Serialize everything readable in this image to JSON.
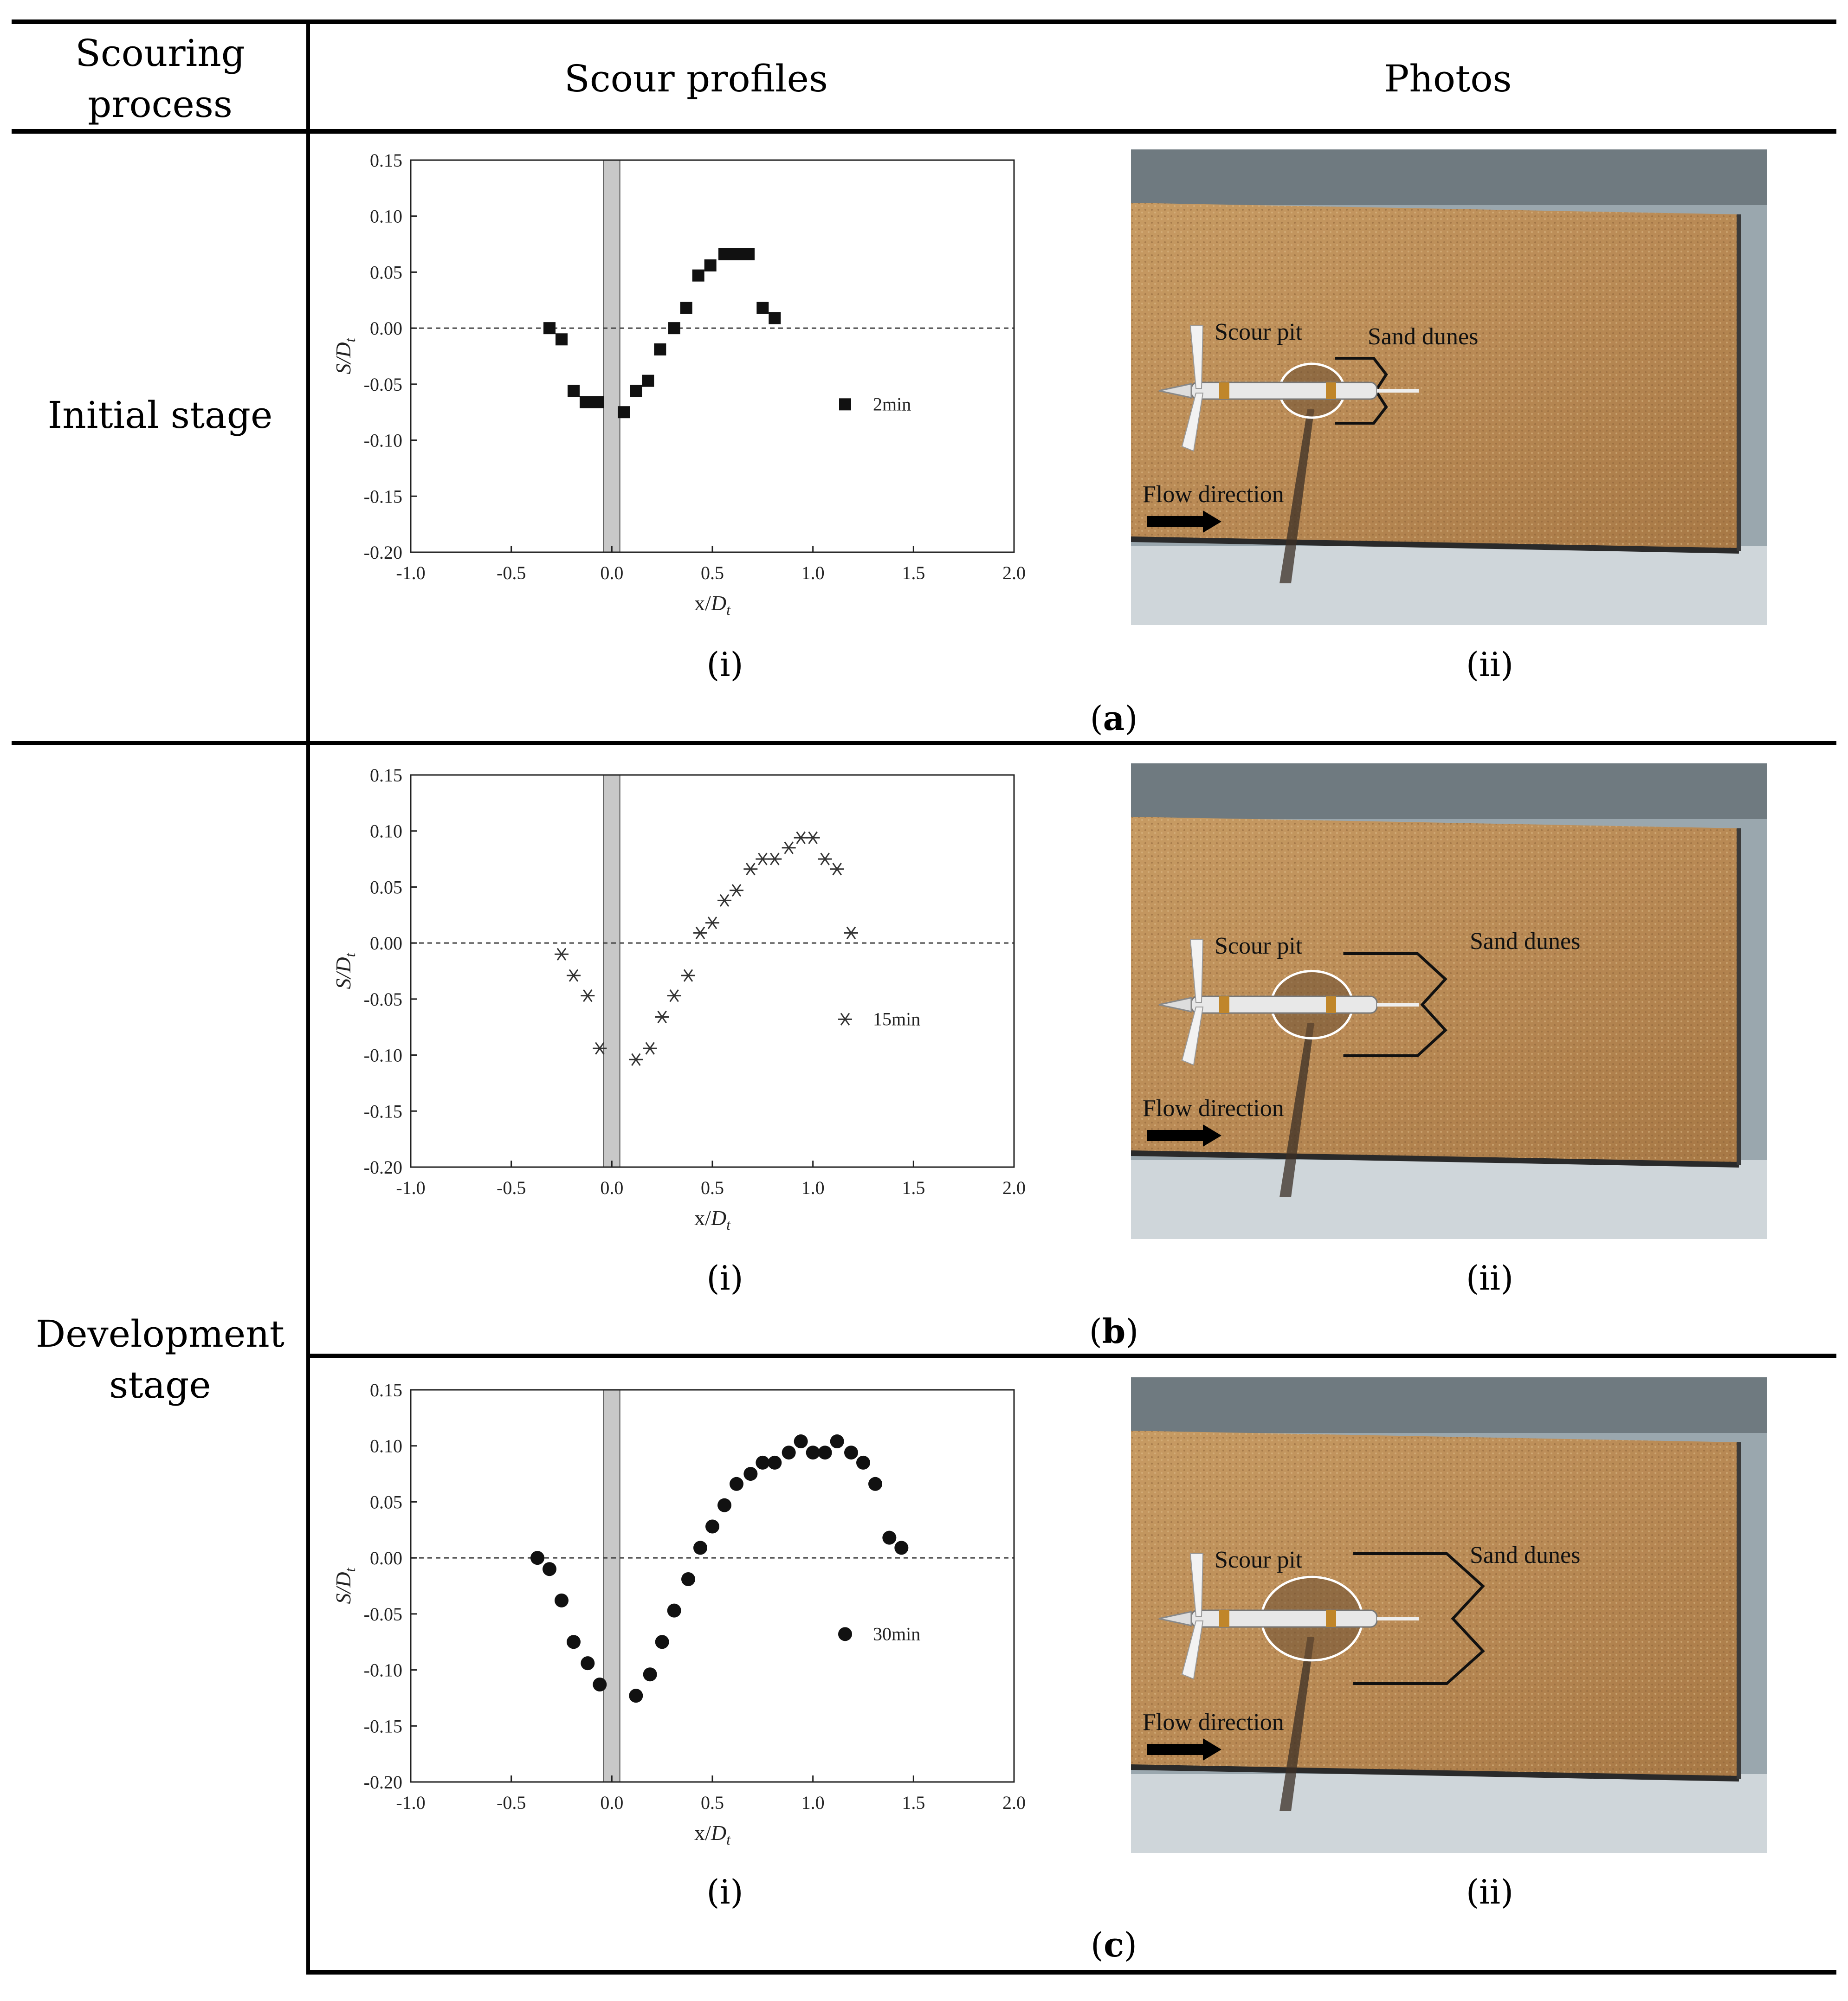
{
  "header": {
    "col1": "Scouring process",
    "col1_lines": [
      "Scouring",
      "process"
    ],
    "col2": "Scour profiles",
    "col3": "Photos"
  },
  "rows": [
    {
      "stage_lines": [
        "Initial stage"
      ],
      "panel_label": "a",
      "sub_i": "(i)",
      "sub_ii": "(ii)",
      "photo": {
        "label_pit": "Scour pit",
        "label_dunes": "Sand dunes",
        "label_flow": "Flow direction"
      }
    },
    {
      "stage_lines": [
        "Development",
        "stage"
      ],
      "panel_label": "b",
      "sub_i": "(i)",
      "sub_ii": "(ii)",
      "photo": {
        "label_pit": "Scour pit",
        "label_dunes": "Sand dunes",
        "label_flow": "Flow direction"
      }
    },
    {
      "panel_label": "c",
      "sub_i": "(i)",
      "sub_ii": "(ii)",
      "photo": {
        "label_pit": "Scour pit",
        "label_dunes": "Sand dunes",
        "label_flow": "Flow direction"
      }
    }
  ],
  "chart_data": [
    {
      "type": "scatter",
      "xlabel": "x/D_t",
      "ylabel": "S/D_t",
      "xlim": [
        -1.0,
        2.0
      ],
      "ylim": [
        -0.2,
        0.15
      ],
      "xticks": [
        "-1.0",
        "-0.5",
        "0.0",
        "0.5",
        "1.0",
        "1.5",
        "2.0"
      ],
      "yticks": [
        "0.15",
        "0.10",
        "0.05",
        "0.00",
        "-0.05",
        "-0.10",
        "-0.15",
        "-0.20"
      ],
      "pile_band": [
        -0.04,
        0.04
      ],
      "grid": false,
      "legend_position": "right",
      "series": [
        {
          "name": "2min",
          "marker": "square",
          "x": [
            -0.31,
            -0.25,
            -0.19,
            -0.13,
            -0.07,
            0.06,
            0.12,
            0.18,
            0.24,
            0.31,
            0.37,
            0.43,
            0.49,
            0.56,
            0.62,
            0.68,
            0.75,
            0.81
          ],
          "y": [
            0.0,
            -0.01,
            -0.056,
            -0.066,
            -0.066,
            -0.075,
            -0.056,
            -0.047,
            -0.019,
            0.0,
            0.018,
            0.047,
            0.056,
            0.066,
            0.066,
            0.066,
            0.018,
            0.009
          ]
        }
      ]
    },
    {
      "type": "scatter",
      "xlabel": "x/D_t",
      "ylabel": "S/D_t",
      "xlim": [
        -1.0,
        2.0
      ],
      "ylim": [
        -0.2,
        0.15
      ],
      "xticks": [
        "-1.0",
        "-0.5",
        "0.0",
        "0.5",
        "1.0",
        "1.5",
        "2.0"
      ],
      "yticks": [
        "0.15",
        "0.10",
        "0.05",
        "0.00",
        "-0.05",
        "-0.10",
        "-0.15",
        "-0.20"
      ],
      "pile_band": [
        -0.04,
        0.04
      ],
      "grid": false,
      "legend_position": "right",
      "series": [
        {
          "name": "15min",
          "marker": "asterisk",
          "x": [
            -0.25,
            -0.19,
            -0.12,
            -0.06,
            0.12,
            0.19,
            0.25,
            0.31,
            0.38,
            0.44,
            0.5,
            0.56,
            0.62,
            0.69,
            0.75,
            0.81,
            0.88,
            0.94,
            1.0,
            1.06,
            1.12,
            1.19
          ],
          "y": [
            -0.01,
            -0.029,
            -0.047,
            -0.094,
            -0.104,
            -0.094,
            -0.066,
            -0.047,
            -0.029,
            0.009,
            0.018,
            0.038,
            0.047,
            0.066,
            0.075,
            0.075,
            0.085,
            0.094,
            0.094,
            0.075,
            0.066,
            0.009
          ]
        }
      ]
    },
    {
      "type": "scatter",
      "xlabel": "x/D_t",
      "ylabel": "S/D_t",
      "xlim": [
        -1.0,
        2.0
      ],
      "ylim": [
        -0.2,
        0.15
      ],
      "xticks": [
        "-1.0",
        "-0.5",
        "0.0",
        "0.5",
        "1.0",
        "1.5",
        "2.0"
      ],
      "yticks": [
        "0.15",
        "0.10",
        "0.05",
        "0.00",
        "-0.05",
        "-0.10",
        "-0.15",
        "-0.20"
      ],
      "pile_band": [
        -0.04,
        0.04
      ],
      "grid": false,
      "legend_position": "right",
      "series": [
        {
          "name": "30min",
          "marker": "circle",
          "x": [
            -0.37,
            -0.31,
            -0.25,
            -0.19,
            -0.12,
            -0.06,
            0.12,
            0.19,
            0.25,
            0.31,
            0.38,
            0.44,
            0.5,
            0.56,
            0.62,
            0.69,
            0.75,
            0.81,
            0.88,
            0.94,
            1.0,
            1.06,
            1.12,
            1.19,
            1.25,
            1.31,
            1.38,
            1.44
          ],
          "y": [
            0.0,
            -0.01,
            -0.038,
            -0.075,
            -0.094,
            -0.113,
            -0.123,
            -0.104,
            -0.075,
            -0.047,
            -0.019,
            0.009,
            0.028,
            0.047,
            0.066,
            0.075,
            0.085,
            0.085,
            0.094,
            0.104,
            0.094,
            0.094,
            0.104,
            0.094,
            0.085,
            0.066,
            0.018,
            0.009
          ]
        }
      ]
    }
  ]
}
